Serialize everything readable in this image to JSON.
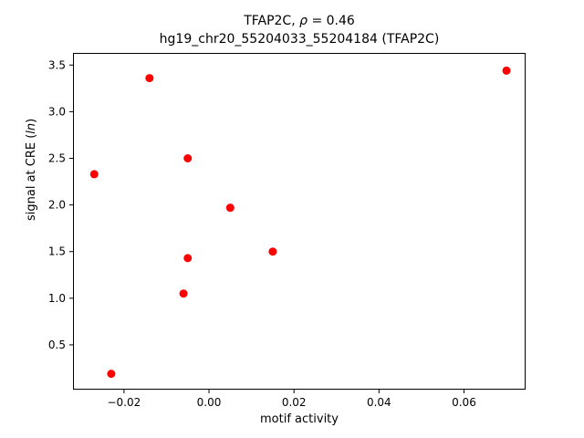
{
  "figure": {
    "title_line1": {
      "prefix": "TFAP2C, ",
      "rho": "ρ",
      "value": " = 0.46"
    },
    "title_line2": "hg19_chr20_55204033_55204184 (TFAP2C)",
    "xlabel": "motif activity",
    "ylabel": {
      "prefix": "signal at CRE (",
      "italic": "ln",
      "suffix": ")"
    }
  },
  "chart_data": {
    "type": "scatter",
    "title": "TFAP2C, ρ = 0.46",
    "subtitle": "hg19_chr20_55204033_55204184 (TFAP2C)",
    "xlabel": "motif activity",
    "ylabel": "signal at CRE (ln)",
    "legend": "none",
    "grid": false,
    "marker": "circle",
    "marker_color": "#ff0000",
    "xlim": [
      -0.032,
      0.0745
    ],
    "ylim": [
      0.02,
      3.63
    ],
    "xticks": [
      -0.02,
      0.0,
      0.02,
      0.04,
      0.06
    ],
    "yticks": [
      0.5,
      1.0,
      1.5,
      2.0,
      2.5,
      3.0,
      3.5
    ],
    "points": [
      {
        "x": -0.027,
        "y": 2.33
      },
      {
        "x": -0.023,
        "y": 0.19
      },
      {
        "x": -0.014,
        "y": 3.36
      },
      {
        "x": -0.006,
        "y": 1.05
      },
      {
        "x": -0.005,
        "y": 1.43
      },
      {
        "x": -0.005,
        "y": 2.5
      },
      {
        "x": 0.005,
        "y": 1.97
      },
      {
        "x": 0.015,
        "y": 1.5
      },
      {
        "x": 0.07,
        "y": 3.44
      }
    ]
  }
}
